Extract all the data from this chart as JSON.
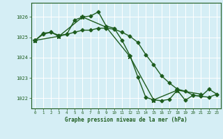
{
  "bg_color": "#d5eef5",
  "grid_color": "#ffffff",
  "line_color": "#1e5c1e",
  "text_color": "#1e5c1e",
  "xlabel": "Graphe pression niveau de la mer (hPa)",
  "xlim": [
    -0.5,
    23.5
  ],
  "ylim": [
    1021.5,
    1026.7
  ],
  "yticks": [
    1022,
    1023,
    1024,
    1025,
    1026
  ],
  "xticks": [
    0,
    1,
    2,
    3,
    4,
    5,
    6,
    7,
    8,
    9,
    10,
    11,
    12,
    13,
    14,
    15,
    16,
    17,
    18,
    19,
    20,
    21,
    22,
    23
  ],
  "series": [
    {
      "x": [
        0,
        1,
        2,
        3,
        4,
        5,
        6,
        7,
        8,
        9,
        10,
        11,
        12,
        13,
        14,
        15,
        16,
        17,
        18,
        19,
        20,
        21,
        22,
        23
      ],
      "y": [
        1024.85,
        1025.2,
        1025.25,
        1025.05,
        1025.15,
        1025.85,
        1026.0,
        1026.05,
        1026.25,
        1025.55,
        1025.45,
        1024.85,
        1024.1,
        1023.05,
        1022.05,
        1021.92,
        1021.88,
        1021.95,
        1022.4,
        1021.9,
        1022.15,
        1022.1,
        1022.45,
        1022.2
      ],
      "marker": "D",
      "markersize": 2.5,
      "linewidth": 1.0
    },
    {
      "x": [
        0,
        1,
        2,
        3,
        4,
        5,
        6,
        7,
        8,
        9,
        10,
        11,
        12,
        13,
        14,
        15,
        16,
        17,
        18,
        19,
        20,
        21,
        22,
        23
      ],
      "y": [
        1024.85,
        1025.15,
        1025.25,
        1025.1,
        1025.15,
        1025.25,
        1025.35,
        1025.35,
        1025.45,
        1025.45,
        1025.4,
        1025.25,
        1025.05,
        1024.75,
        1024.15,
        1023.65,
        1023.1,
        1022.75,
        1022.45,
        1022.35,
        1022.15,
        1022.1,
        1022.05,
        1022.2
      ],
      "marker": "D",
      "markersize": 2.5,
      "linewidth": 1.0
    },
    {
      "x": [
        0,
        3,
        6,
        9,
        12,
        15,
        18,
        21
      ],
      "y": [
        1024.85,
        1025.05,
        1026.0,
        1025.5,
        1024.05,
        1021.92,
        1022.4,
        1022.2
      ],
      "marker": "*",
      "markersize": 5,
      "linewidth": 1.0
    }
  ]
}
